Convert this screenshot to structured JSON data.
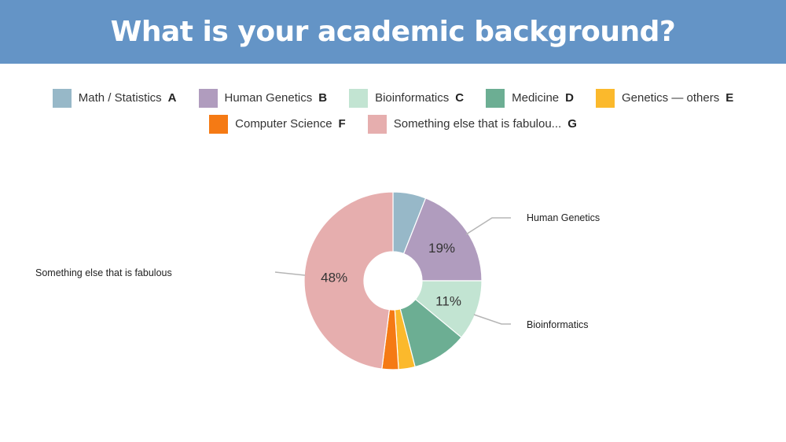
{
  "title": "What is your academic background?",
  "legend": [
    {
      "label": "Math / Statistics",
      "letter": "A",
      "color": "#97b8c8"
    },
    {
      "label": "Human Genetics",
      "letter": "B",
      "color": "#b09cbe"
    },
    {
      "label": "Bioinformatics",
      "letter": "C",
      "color": "#c2e4d2"
    },
    {
      "label": "Medicine",
      "letter": "D",
      "color": "#6cae93"
    },
    {
      "label": "Genetics — others",
      "letter": "E",
      "color": "#fbb92c"
    },
    {
      "label": "Computer Science",
      "letter": "F",
      "color": "#f57a14"
    },
    {
      "label": "Something else that is fabulou...",
      "letter": "G",
      "color": "#e6aeae"
    }
  ],
  "chart_data": {
    "type": "pie",
    "donut": true,
    "categories": [
      "Math / Statistics",
      "Human Genetics",
      "Bioinformatics",
      "Medicine",
      "Genetics — others",
      "Computer Science",
      "Something else that is fabulous"
    ],
    "values": [
      6,
      19,
      11,
      10,
      3,
      3,
      48
    ],
    "slice_labels": [
      "",
      "19%",
      "11%",
      "",
      "",
      "",
      "48%"
    ],
    "callouts": [
      "",
      "Human Genetics",
      "Bioinformatics",
      "",
      "",
      "",
      "Something else that is fabulous"
    ],
    "colors": [
      "#97b8c8",
      "#b09cbe",
      "#c2e4d2",
      "#6cae93",
      "#fbb92c",
      "#f57a14",
      "#e6aeae"
    ]
  }
}
